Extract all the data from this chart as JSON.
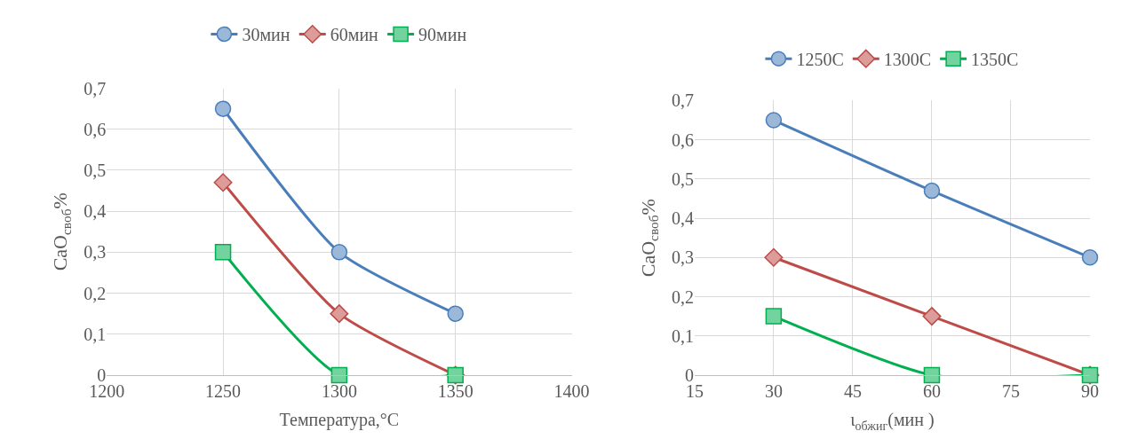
{
  "chart_data": [
    {
      "type": "line",
      "xlabel": "Температура,°С",
      "ylabel": "CaO$_{своб}$%",
      "x": [
        1250,
        1300,
        1350
      ],
      "xlim": [
        1200,
        1400
      ],
      "xticks": [
        1200,
        1250,
        1300,
        1350,
        1400
      ],
      "ylim": [
        0,
        0.7
      ],
      "yticks": [
        0,
        {
          "value": 0.1,
          "label": "0,1"
        },
        {
          "value": 0.2,
          "label": "0,2"
        },
        {
          "value": 0.3,
          "label": "0,3"
        },
        {
          "value": 0.4,
          "label": "0,4"
        },
        {
          "value": 0.5,
          "label": "0,5"
        },
        {
          "value": 0.6,
          "label": "0,6"
        },
        {
          "value": 0.7,
          "label": "0,7"
        }
      ],
      "grid": true,
      "legend": "top",
      "series": [
        {
          "name": "30мин",
          "color": "#4a7ebb",
          "marker": "circle",
          "values": [
            0.65,
            0.3,
            0.15
          ]
        },
        {
          "name": "60мин",
          "color": "#be4b48",
          "marker": "diamond",
          "values": [
            0.47,
            0.15,
            0
          ]
        },
        {
          "name": "90мин",
          "color": "#00b050",
          "marker": "square",
          "values": [
            0.3,
            0,
            0
          ]
        }
      ]
    },
    {
      "type": "line",
      "xlabel": "ι$_{обжиг}$(мин )",
      "ylabel": "CaO$_{своб}$%",
      "x": [
        30,
        60,
        90
      ],
      "xlim": [
        15,
        90
      ],
      "xticks": [
        15,
        30,
        45,
        60,
        75,
        90
      ],
      "ylim": [
        0,
        0.7
      ],
      "yticks": [
        0,
        {
          "value": 0.1,
          "label": "0,1"
        },
        {
          "value": 0.2,
          "label": "0,2"
        },
        {
          "value": 0.3,
          "label": "0,3"
        },
        {
          "value": 0.4,
          "label": "0,4"
        },
        {
          "value": 0.5,
          "label": "0,5"
        },
        {
          "value": 0.6,
          "label": "0,6"
        },
        {
          "value": 0.7,
          "label": "0,7"
        }
      ],
      "grid": true,
      "legend": "top",
      "series": [
        {
          "name": "1250С",
          "color": "#4a7ebb",
          "marker": "circle",
          "values": [
            0.65,
            0.47,
            0.3
          ]
        },
        {
          "name": "1300С",
          "color": "#be4b48",
          "marker": "diamond",
          "values": [
            0.3,
            0.15,
            0
          ]
        },
        {
          "name": "1350С",
          "color": "#00b050",
          "marker": "square",
          "values": [
            0.15,
            0,
            0
          ]
        }
      ]
    }
  ]
}
